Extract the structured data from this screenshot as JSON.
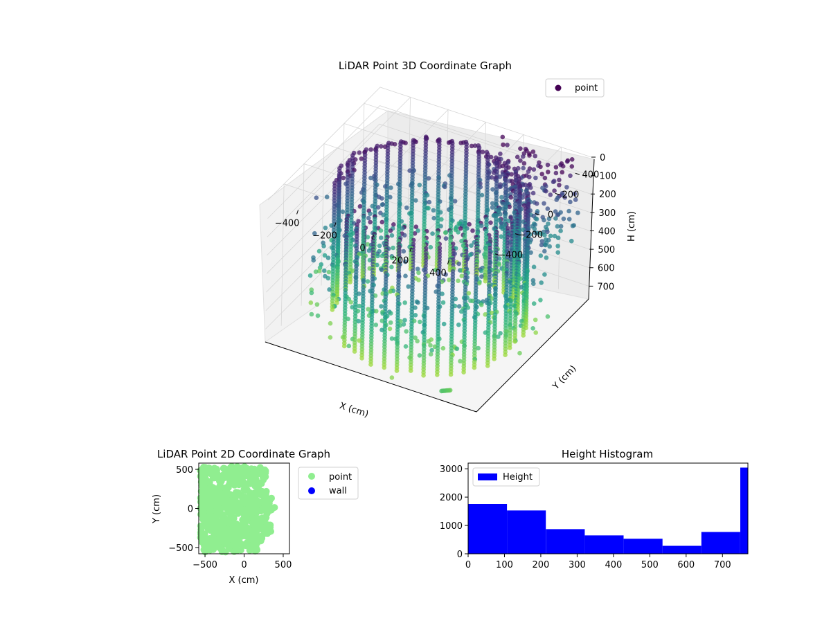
{
  "chart_data": [
    {
      "type": "scatter3d",
      "title": "LiDAR Point 3D Coordinate Graph",
      "xlabel": "X (cm)",
      "ylabel": "Y (cm)",
      "zlabel": "H (cm)",
      "xticks": [
        "−400",
        "−200",
        "0",
        "200",
        "400"
      ],
      "yticks": [
        "400",
        "200",
        "0",
        "−200",
        "−400"
      ],
      "zticks": [
        "0",
        "100",
        "200",
        "300",
        "400",
        "500",
        "600",
        "700"
      ],
      "xlim": [
        -560,
        560
      ],
      "ylim": [
        -560,
        560
      ],
      "zlim": [
        0,
        770
      ],
      "z_inverted": true,
      "legend": {
        "position": "top-right",
        "entries": [
          {
            "name": "point",
            "color": "#440154"
          }
        ]
      },
      "colormap": "viridis",
      "color_by": "height",
      "grid": true,
      "description_points": {
        "ring_radius": 450,
        "ring_arc_deg": [
          -120,
          200
        ],
        "column_step_deg": 8
      }
    },
    {
      "type": "scatter",
      "title": "LiDAR Point 2D Coordinate Graph",
      "xlabel": "X (cm)",
      "ylabel": "Y (cm)",
      "xticks": [
        -500,
        0,
        500
      ],
      "yticks": [
        -500,
        0,
        500
      ],
      "xlim": [
        -580,
        580
      ],
      "ylim": [
        -580,
        580
      ],
      "grid": false,
      "legend": {
        "position": "outside-right",
        "entries": [
          {
            "name": "point",
            "color": "#90ee90"
          },
          {
            "name": "wall",
            "color": "#0000ff"
          }
        ]
      }
    },
    {
      "type": "bar",
      "title": "Height Histogram",
      "xlabel": "",
      "ylabel": "",
      "bin_edges": [
        0,
        107,
        214,
        321,
        428,
        535,
        642,
        749,
        770
      ],
      "values": [
        1760,
        1530,
        870,
        650,
        530,
        280,
        770,
        3040
      ],
      "xticks": [
        0,
        100,
        200,
        300,
        400,
        500,
        600,
        700
      ],
      "yticks": [
        0,
        1000,
        2000,
        3000
      ],
      "xlim": [
        0,
        770
      ],
      "ylim": [
        0,
        3200
      ],
      "color": "#0000ff",
      "legend": {
        "position": "top-left",
        "entries": [
          {
            "name": "Height",
            "color": "#0000ff"
          }
        ]
      },
      "grid": false
    }
  ]
}
